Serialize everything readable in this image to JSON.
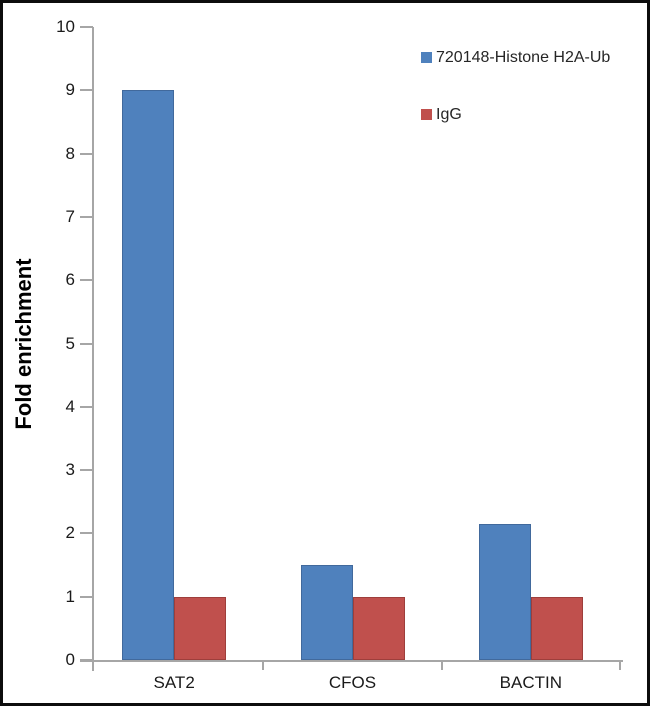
{
  "chart_data": {
    "type": "bar",
    "title": "",
    "categories": [
      "SAT2",
      "CFOS",
      "BACTIN"
    ],
    "series": [
      {
        "name": "720148-Histone H2A-Ub",
        "color": "#4f81bd",
        "border_color": "#41699c",
        "values": [
          9.0,
          1.5,
          2.15
        ]
      },
      {
        "name": "IgG",
        "color": "#c0504d",
        "border_color": "#9e3e3b",
        "values": [
          1.0,
          1.0,
          1.0
        ]
      }
    ],
    "xlabel": "",
    "ylabel": "Fold enrichment",
    "ylim": [
      0,
      10
    ],
    "ytick_step": 1,
    "ytick_labels": [
      "0",
      "1",
      "2",
      "3",
      "4",
      "5",
      "6",
      "7",
      "8",
      "9",
      "10"
    ],
    "grid": false,
    "legend_position": "top-right",
    "axis_color": "#a6a6a6",
    "text_color": "#1a1a1a"
  }
}
